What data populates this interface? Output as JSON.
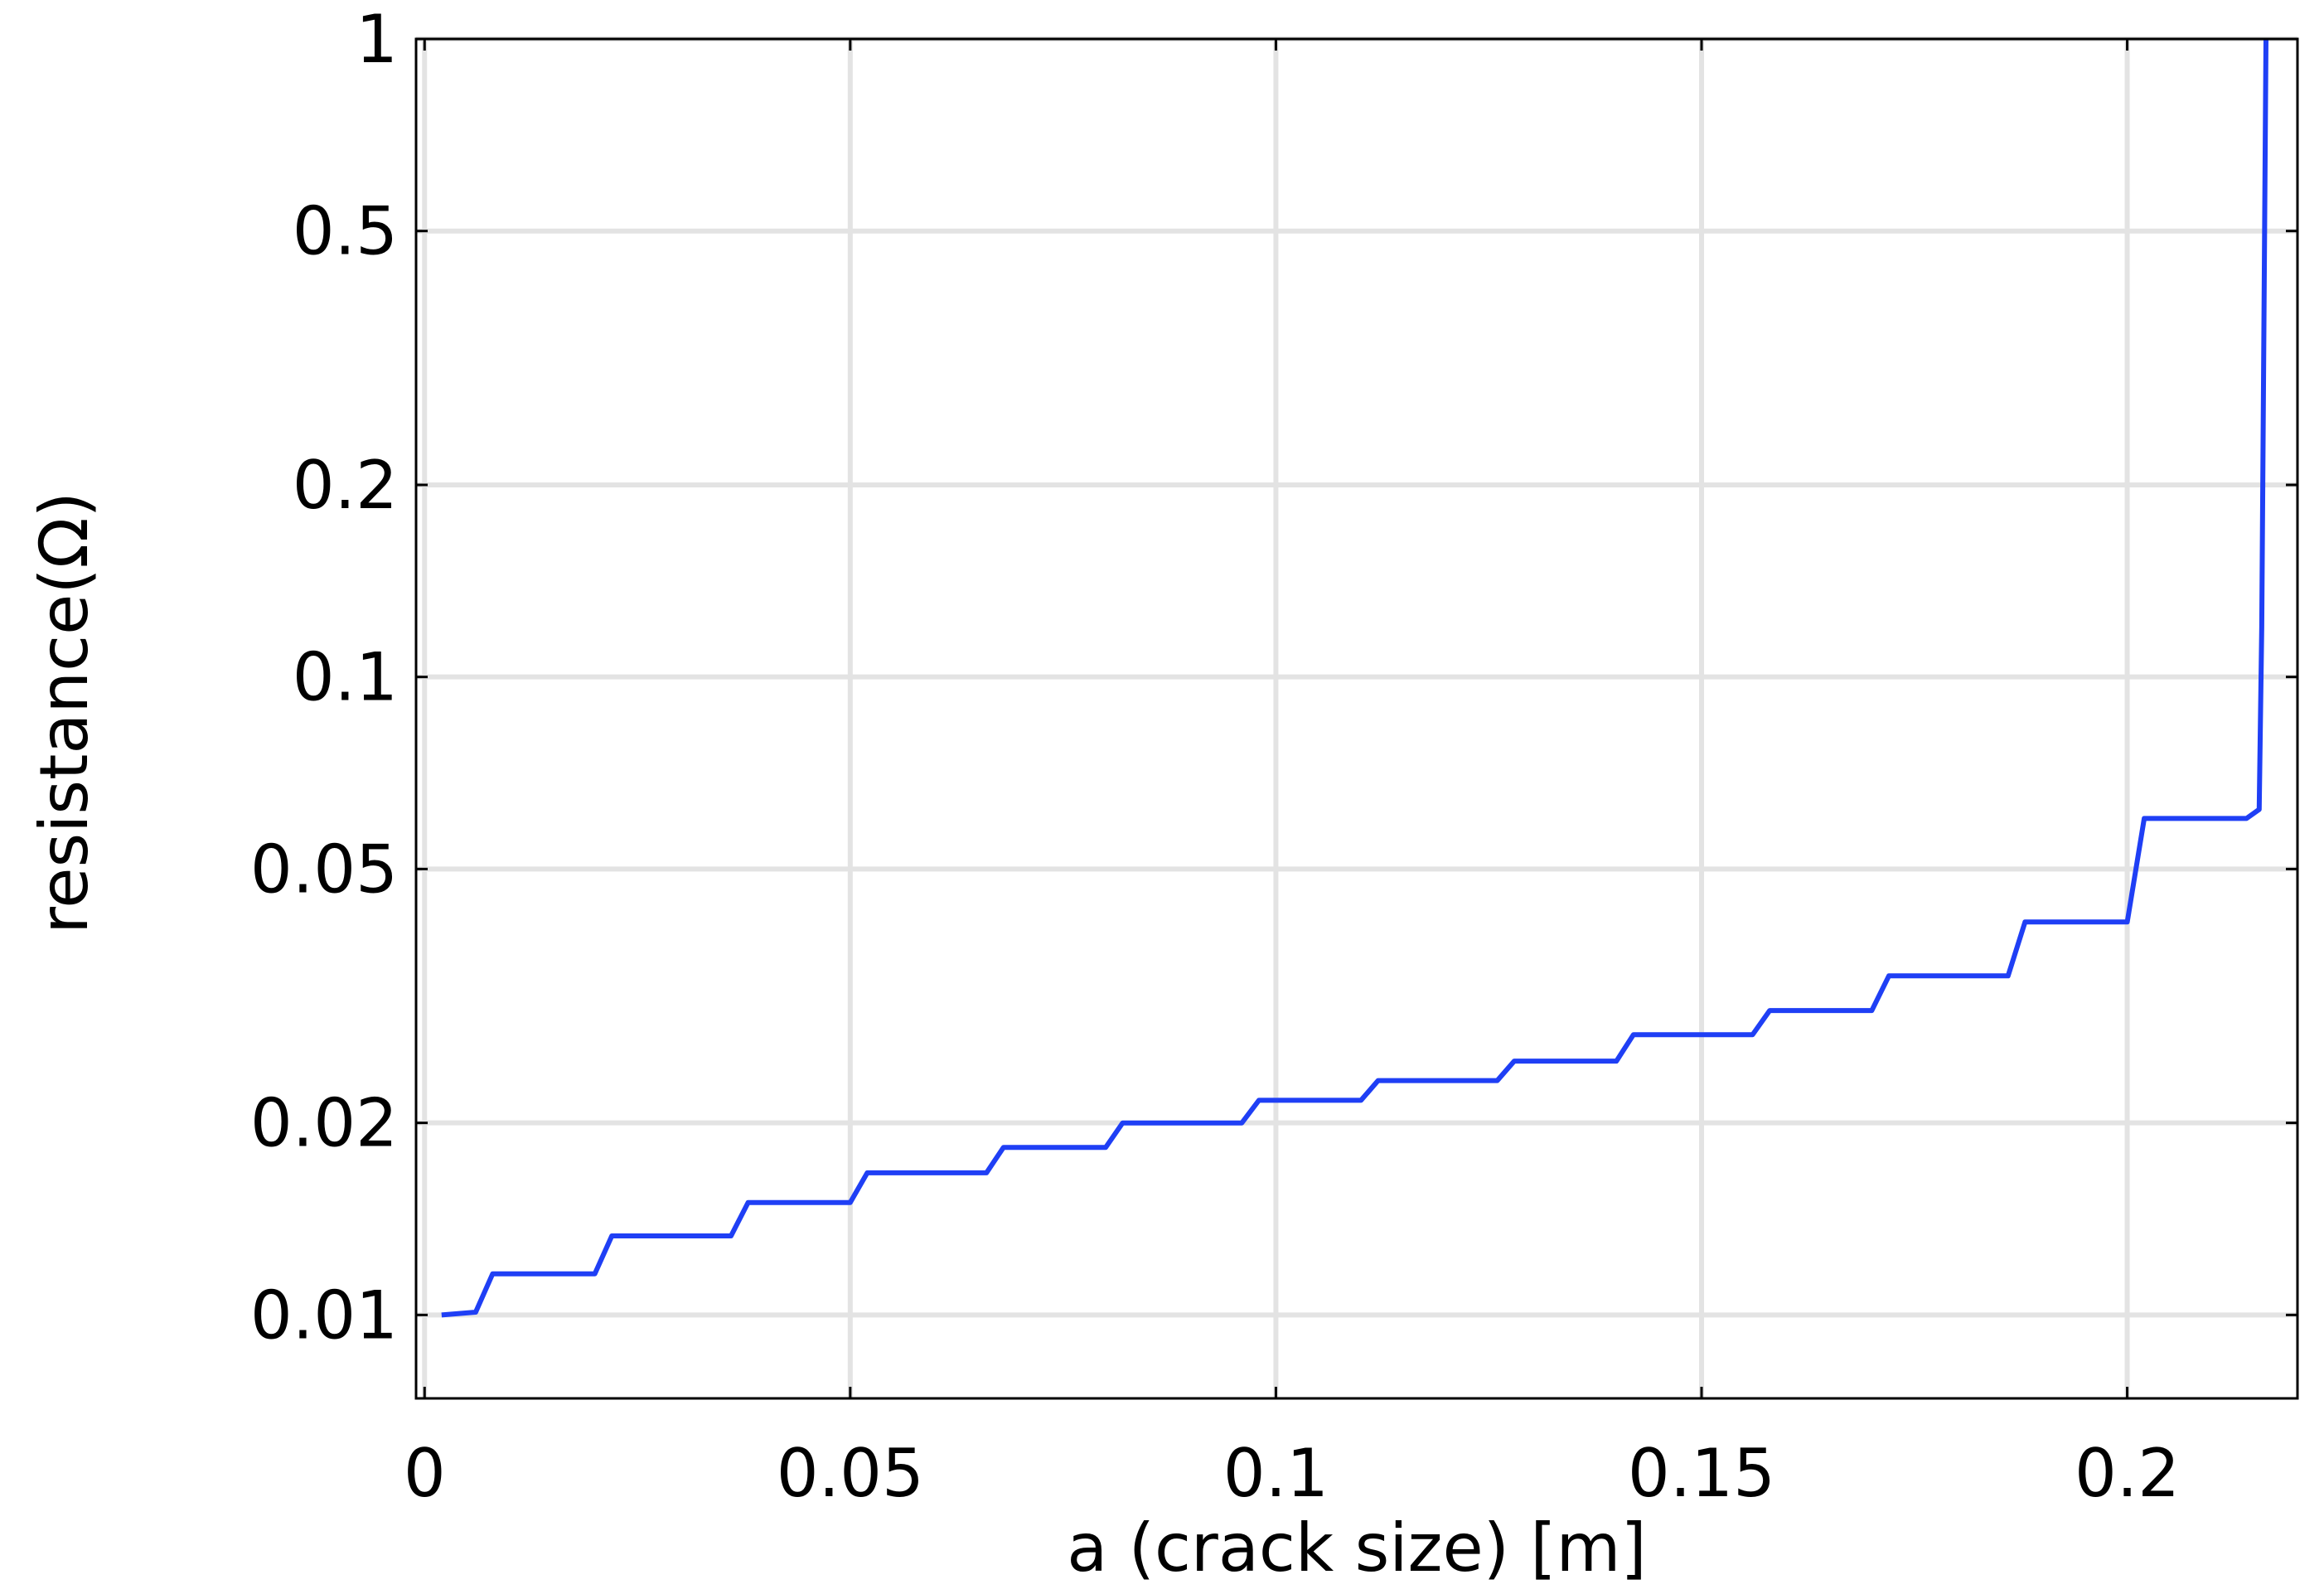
{
  "chart_data": {
    "type": "line",
    "xlabel": "a (crack size) [m]",
    "ylabel": "resistance(Ω)",
    "xlim": [
      -0.001,
      0.22
    ],
    "ylim": [
      0.0074,
      1.0
    ],
    "yscale": "log",
    "grid": true,
    "x_ticks": [
      {
        "value": 0,
        "label": "0"
      },
      {
        "value": 0.05,
        "label": "0.05"
      },
      {
        "value": 0.1,
        "label": "0.1"
      },
      {
        "value": 0.15,
        "label": "0.15"
      },
      {
        "value": 0.2,
        "label": "0.2"
      }
    ],
    "y_ticks": [
      {
        "value": 0.01,
        "label": "0.01"
      },
      {
        "value": 0.02,
        "label": "0.02"
      },
      {
        "value": 0.05,
        "label": "0.05"
      },
      {
        "value": 0.1,
        "label": "0.1"
      },
      {
        "value": 0.2,
        "label": "0.2"
      },
      {
        "value": 0.5,
        "label": "0.5"
      },
      {
        "value": 1,
        "label": "1"
      }
    ],
    "series": [
      {
        "color": "#1f3ff5",
        "x": [
          0.002,
          0.006,
          0.008,
          0.02,
          0.022,
          0.036,
          0.038,
          0.05,
          0.052,
          0.066,
          0.068,
          0.08,
          0.082,
          0.096,
          0.098,
          0.11,
          0.112,
          0.126,
          0.128,
          0.14,
          0.142,
          0.156,
          0.158,
          0.17,
          0.172,
          0.186,
          0.188,
          0.2,
          0.202,
          0.214,
          0.2155,
          0.2158,
          0.2163
        ],
        "y": [
          0.01,
          0.0101,
          0.0116,
          0.0116,
          0.0133,
          0.0133,
          0.015,
          0.015,
          0.0167,
          0.0167,
          0.0183,
          0.0183,
          0.02,
          0.02,
          0.0217,
          0.0217,
          0.0233,
          0.0233,
          0.025,
          0.025,
          0.0275,
          0.0275,
          0.03,
          0.03,
          0.034,
          0.034,
          0.0413,
          0.0413,
          0.06,
          0.06,
          0.062,
          0.12,
          1.0
        ]
      }
    ]
  }
}
